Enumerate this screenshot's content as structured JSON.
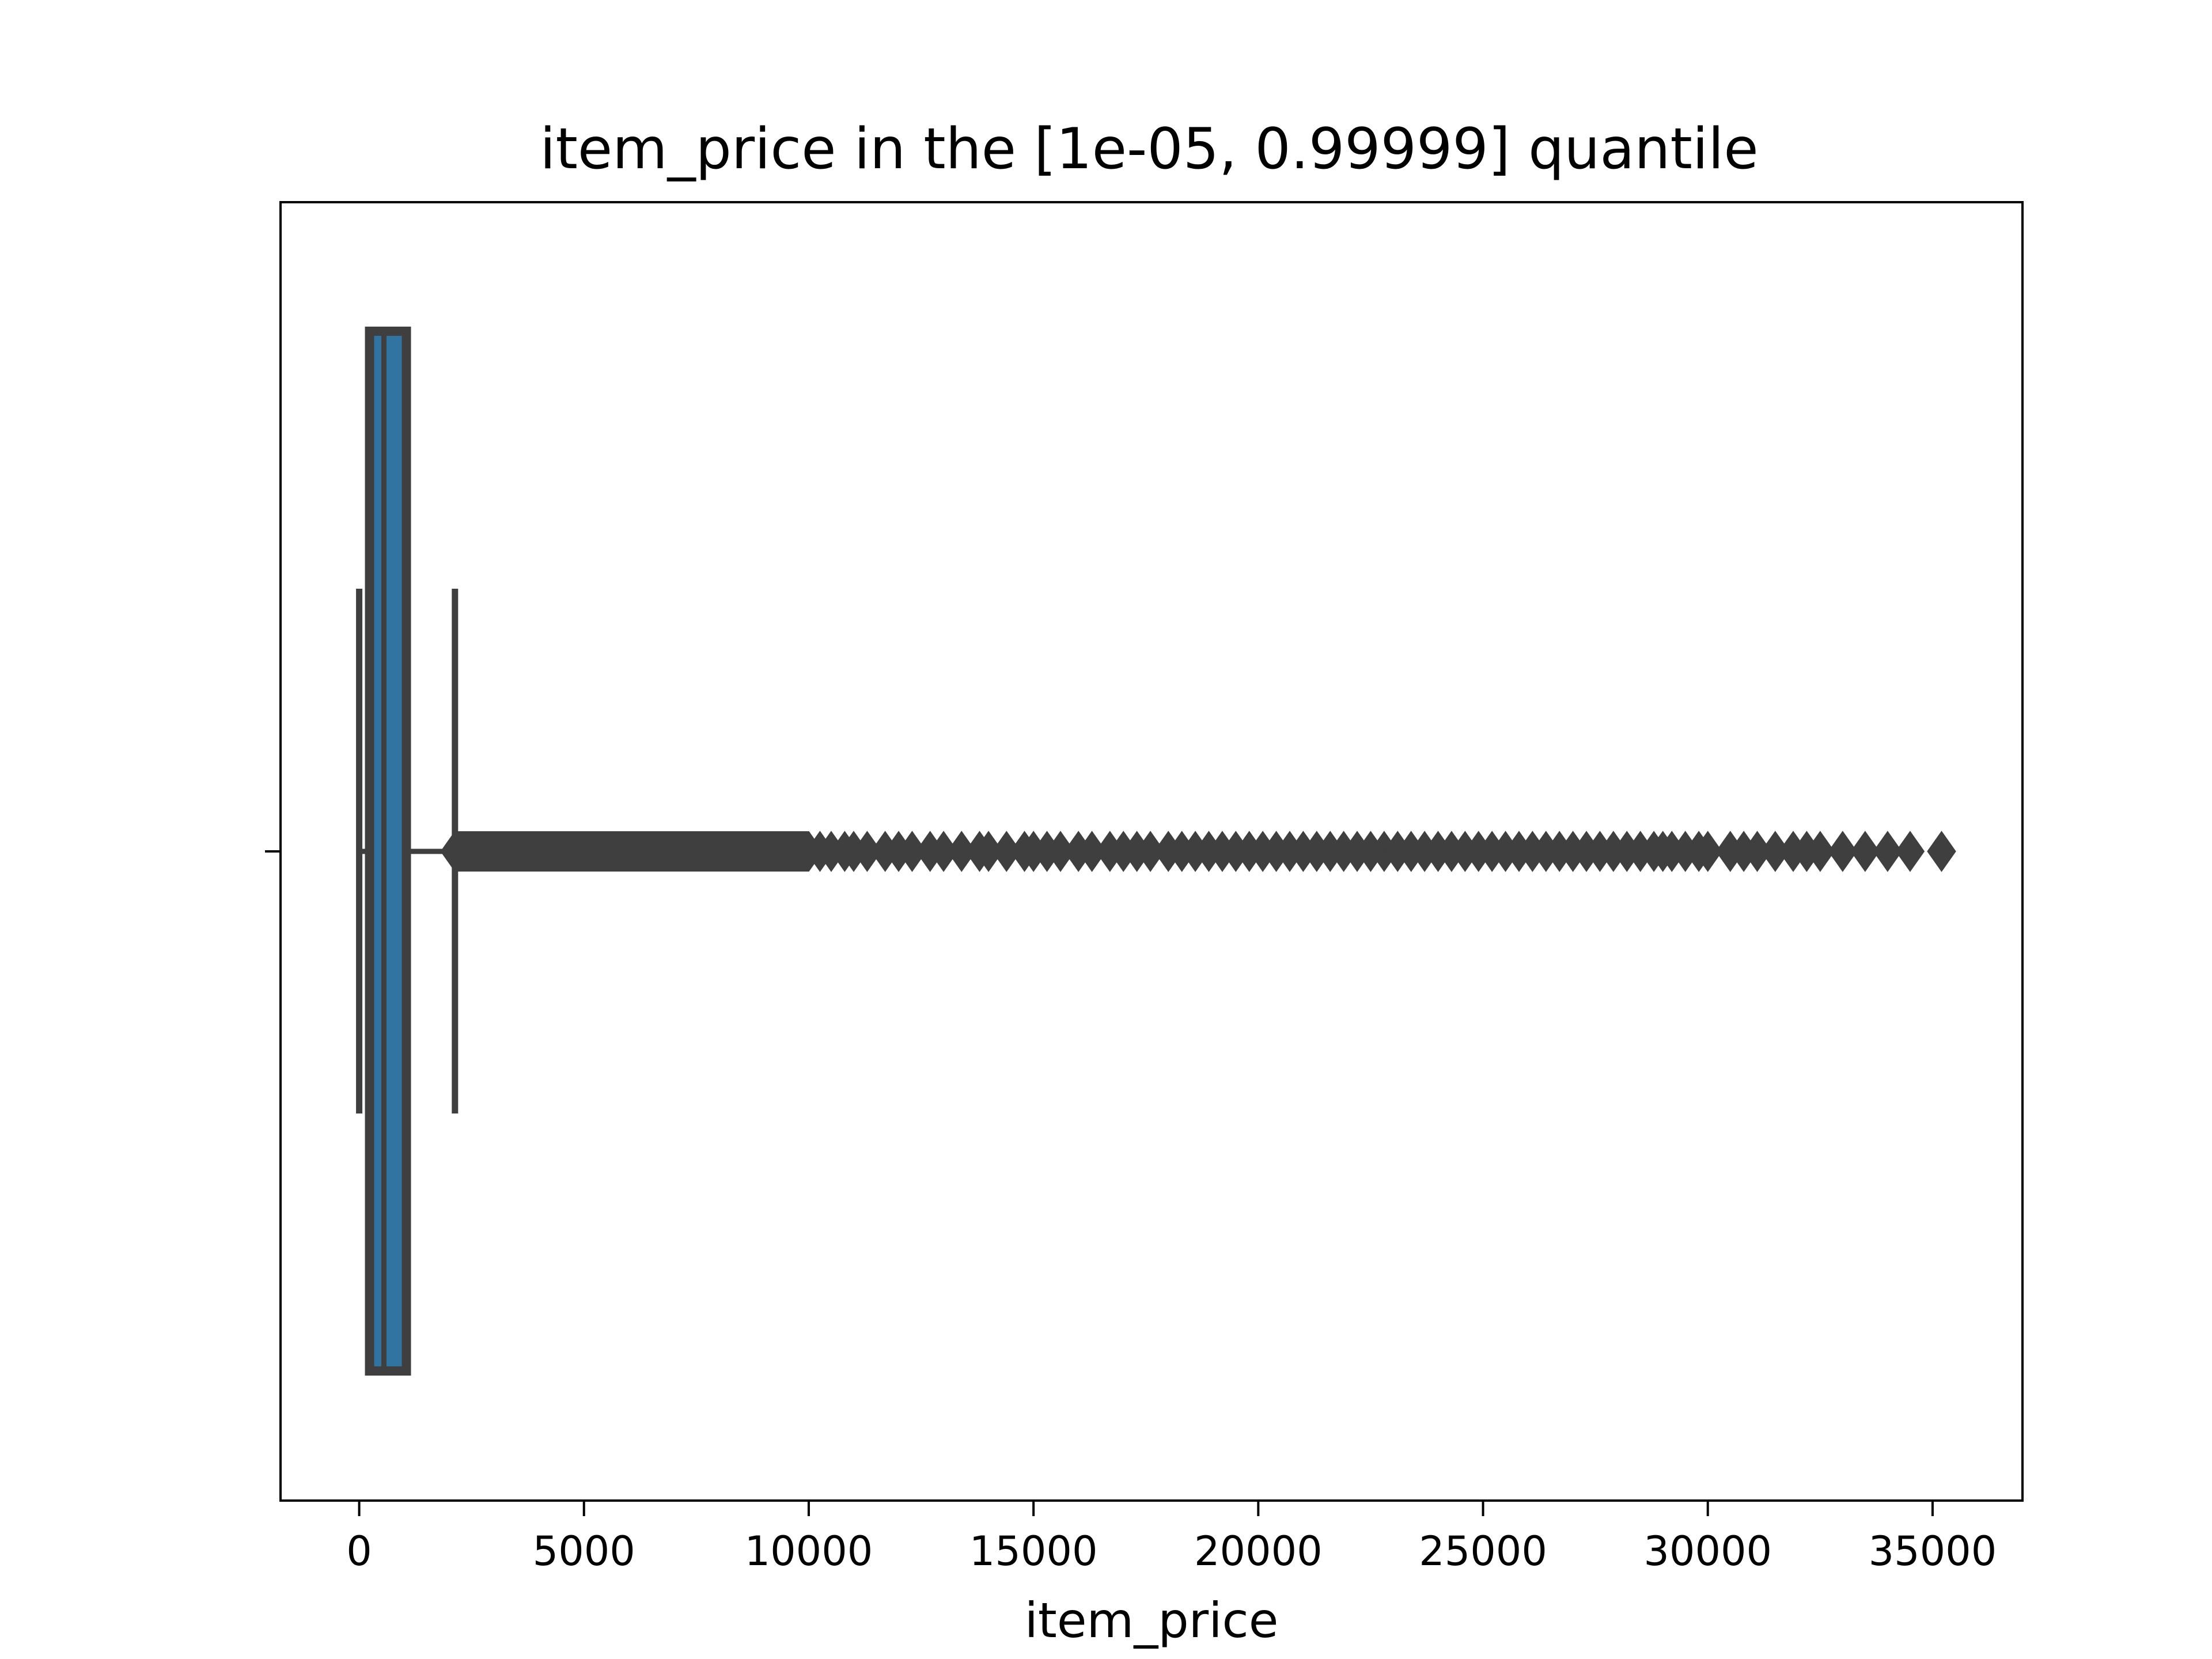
{
  "colors": {
    "box_fill": "#3274a1",
    "line": "#3f3f3f",
    "axes": "#000000",
    "background": "#ffffff"
  },
  "chart_data": {
    "type": "box",
    "orientation": "horizontal",
    "title": "item_price in the [1e-05, 0.99999] quantile",
    "xlabel": "item_price",
    "ylabel": "",
    "xlim": [
      -1750,
      37000
    ],
    "xticks": [
      0,
      5000,
      10000,
      15000,
      20000,
      25000,
      30000,
      35000
    ],
    "xtick_labels": [
      "0",
      "5000",
      "10000",
      "15000",
      "20000",
      "25000",
      "30000",
      "35000"
    ],
    "grid": false,
    "legend": "none",
    "box": {
      "whisker_low": 0,
      "q1": 230,
      "median": 550,
      "q3": 1050,
      "whisker_high": 2130
    },
    "outliers": {
      "dense_range": [
        2130,
        10000
      ],
      "range": [
        2130,
        35200
      ],
      "points": [
        10250,
        10500,
        10800,
        11000,
        11300,
        11700,
        12000,
        12300,
        12700,
        13000,
        13400,
        13800,
        14000,
        14400,
        14800,
        15000,
        15300,
        15600,
        16000,
        16300,
        16700,
        17000,
        17300,
        17600,
        18000,
        18300,
        18600,
        18900,
        19200,
        19500,
        19800,
        20100,
        20400,
        20700,
        21000,
        21300,
        21600,
        21900,
        22200,
        22500,
        22800,
        23100,
        23400,
        23700,
        24000,
        24300,
        24600,
        24900,
        25200,
        25500,
        25800,
        26100,
        26400,
        26700,
        27000,
        27300,
        27600,
        27900,
        28200,
        28500,
        28800,
        29000,
        29200,
        29500,
        29800,
        30000,
        30500,
        30800,
        31100,
        31500,
        31900,
        32200,
        32500,
        33000,
        33500,
        34000,
        34500,
        35200
      ]
    }
  }
}
